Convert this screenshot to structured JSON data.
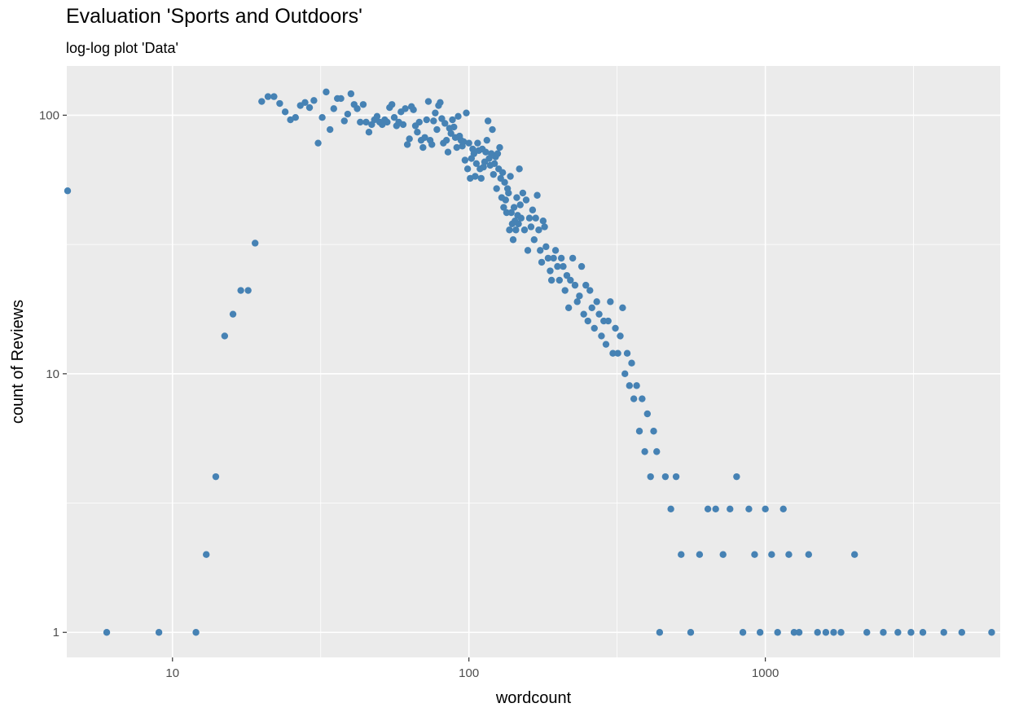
{
  "chart_data": {
    "type": "scatter",
    "title": "Evaluation 'Sports and Outdoors'",
    "subtitle": "log-log plot 'Data'",
    "xlabel": "wordcount",
    "ylabel": "count of Reviews",
    "x_scale": "log10",
    "y_scale": "log10",
    "xlim": [
      4.4,
      6200
    ],
    "ylim": [
      0.8,
      155
    ],
    "x_ticks": [
      {
        "value": 10,
        "label": "10"
      },
      {
        "value": 100,
        "label": "100"
      },
      {
        "value": 1000,
        "label": "1000"
      }
    ],
    "y_ticks": [
      {
        "value": 1,
        "label": "1"
      },
      {
        "value": 10,
        "label": "10"
      },
      {
        "value": 100,
        "label": "100"
      }
    ],
    "grid": true,
    "background": "#ebebeb",
    "point_color": "#4682b4",
    "points": [
      [
        4.4,
        51
      ],
      [
        6,
        1
      ],
      [
        9,
        1
      ],
      [
        12,
        1
      ],
      [
        13,
        2
      ],
      [
        14,
        4
      ],
      [
        15,
        14
      ],
      [
        16,
        17
      ],
      [
        17,
        21
      ],
      [
        18,
        21
      ],
      [
        19,
        32
      ],
      [
        20,
        113
      ],
      [
        21,
        118
      ],
      [
        22,
        118
      ],
      [
        23,
        111
      ],
      [
        24,
        103
      ],
      [
        25,
        96
      ],
      [
        26,
        98
      ],
      [
        27,
        109
      ],
      [
        28,
        112
      ],
      [
        29,
        107
      ],
      [
        30,
        114
      ],
      [
        31,
        78
      ],
      [
        32,
        98
      ],
      [
        33,
        123
      ],
      [
        34,
        88
      ],
      [
        35,
        106
      ],
      [
        36,
        116
      ],
      [
        37,
        116
      ],
      [
        38,
        95
      ],
      [
        39,
        101
      ],
      [
        40,
        121
      ],
      [
        41,
        110
      ],
      [
        42,
        106
      ],
      [
        43,
        94
      ],
      [
        44,
        110
      ],
      [
        45,
        94
      ],
      [
        46,
        86
      ],
      [
        47,
        92
      ],
      [
        48,
        96
      ],
      [
        49,
        99
      ],
      [
        50,
        94
      ],
      [
        51,
        92
      ],
      [
        52,
        96
      ],
      [
        53,
        94
      ],
      [
        54,
        107
      ],
      [
        55,
        110
      ],
      [
        56,
        98
      ],
      [
        57,
        91
      ],
      [
        58,
        94
      ],
      [
        59,
        103
      ],
      [
        60,
        92
      ],
      [
        61,
        106
      ],
      [
        62,
        77
      ],
      [
        63,
        81
      ],
      [
        64,
        108
      ],
      [
        65,
        105
      ],
      [
        66,
        91
      ],
      [
        67,
        86
      ],
      [
        68,
        94
      ],
      [
        69,
        80
      ],
      [
        70,
        75
      ],
      [
        71,
        82
      ],
      [
        72,
        96
      ],
      [
        73,
        113
      ],
      [
        74,
        80
      ],
      [
        75,
        77
      ],
      [
        76,
        95
      ],
      [
        77,
        102
      ],
      [
        78,
        88
      ],
      [
        79,
        109
      ],
      [
        80,
        112
      ],
      [
        81,
        97
      ],
      [
        82,
        78
      ],
      [
        83,
        93
      ],
      [
        84,
        80
      ],
      [
        85,
        72
      ],
      [
        86,
        89
      ],
      [
        87,
        85
      ],
      [
        88,
        96
      ],
      [
        89,
        90
      ],
      [
        90,
        82
      ],
      [
        91,
        75
      ],
      [
        92,
        99
      ],
      [
        93,
        83
      ],
      [
        94,
        80
      ],
      [
        95,
        76
      ],
      [
        96,
        79
      ],
      [
        97,
        67
      ],
      [
        98,
        102
      ],
      [
        99,
        62
      ],
      [
        100,
        78
      ],
      [
        101,
        57
      ],
      [
        102,
        68
      ],
      [
        103,
        74
      ],
      [
        104,
        71
      ],
      [
        105,
        58
      ],
      [
        106,
        65
      ],
      [
        107,
        78
      ],
      [
        108,
        73
      ],
      [
        109,
        62
      ],
      [
        110,
        57
      ],
      [
        111,
        74
      ],
      [
        112,
        63
      ],
      [
        113,
        66
      ],
      [
        114,
        72
      ],
      [
        115,
        80
      ],
      [
        116,
        95
      ],
      [
        117,
        68
      ],
      [
        118,
        64
      ],
      [
        119,
        71
      ],
      [
        120,
        88
      ],
      [
        121,
        59
      ],
      [
        122,
        65
      ],
      [
        123,
        69
      ],
      [
        124,
        52
      ],
      [
        125,
        71
      ],
      [
        126,
        62
      ],
      [
        127,
        75
      ],
      [
        128,
        57
      ],
      [
        129,
        48
      ],
      [
        130,
        60
      ],
      [
        131,
        44
      ],
      [
        132,
        55
      ],
      [
        133,
        47
      ],
      [
        134,
        42
      ],
      [
        135,
        52
      ],
      [
        136,
        50
      ],
      [
        137,
        36
      ],
      [
        138,
        58
      ],
      [
        139,
        42
      ],
      [
        140,
        38
      ],
      [
        141,
        33
      ],
      [
        142,
        44
      ],
      [
        143,
        39
      ],
      [
        144,
        36
      ],
      [
        145,
        48
      ],
      [
        146,
        41
      ],
      [
        147,
        38
      ],
      [
        148,
        62
      ],
      [
        149,
        45
      ],
      [
        150,
        40
      ],
      [
        152,
        50
      ],
      [
        154,
        36
      ],
      [
        156,
        47
      ],
      [
        158,
        30
      ],
      [
        160,
        40
      ],
      [
        162,
        37
      ],
      [
        164,
        43
      ],
      [
        166,
        33
      ],
      [
        168,
        40
      ],
      [
        170,
        49
      ],
      [
        172,
        36
      ],
      [
        174,
        30
      ],
      [
        176,
        27
      ],
      [
        178,
        39
      ],
      [
        180,
        37
      ],
      [
        182,
        31
      ],
      [
        185,
        28
      ],
      [
        188,
        25
      ],
      [
        190,
        23
      ],
      [
        193,
        28
      ],
      [
        196,
        30
      ],
      [
        199,
        26
      ],
      [
        202,
        23
      ],
      [
        205,
        28
      ],
      [
        208,
        26
      ],
      [
        211,
        21
      ],
      [
        214,
        24
      ],
      [
        217,
        18
      ],
      [
        220,
        23
      ],
      [
        224,
        28
      ],
      [
        228,
        22
      ],
      [
        232,
        19
      ],
      [
        236,
        20
      ],
      [
        240,
        26
      ],
      [
        244,
        17
      ],
      [
        248,
        22
      ],
      [
        252,
        16
      ],
      [
        256,
        21
      ],
      [
        260,
        18
      ],
      [
        265,
        15
      ],
      [
        270,
        19
      ],
      [
        275,
        17
      ],
      [
        280,
        14
      ],
      [
        285,
        16
      ],
      [
        290,
        13
      ],
      [
        295,
        16
      ],
      [
        300,
        19
      ],
      [
        306,
        12
      ],
      [
        312,
        15
      ],
      [
        318,
        12
      ],
      [
        324,
        14
      ],
      [
        330,
        18
      ],
      [
        336,
        10
      ],
      [
        342,
        12
      ],
      [
        348,
        9
      ],
      [
        354,
        11
      ],
      [
        360,
        8
      ],
      [
        368,
        9
      ],
      [
        376,
        6
      ],
      [
        384,
        8
      ],
      [
        392,
        5
      ],
      [
        400,
        7
      ],
      [
        410,
        4
      ],
      [
        420,
        6
      ],
      [
        430,
        5
      ],
      [
        440,
        1
      ],
      [
        460,
        4
      ],
      [
        480,
        3
      ],
      [
        500,
        4
      ],
      [
        520,
        2
      ],
      [
        560,
        1
      ],
      [
        600,
        2
      ],
      [
        640,
        3
      ],
      [
        680,
        3
      ],
      [
        720,
        2
      ],
      [
        760,
        3
      ],
      [
        800,
        4
      ],
      [
        840,
        1
      ],
      [
        880,
        3
      ],
      [
        920,
        2
      ],
      [
        960,
        1
      ],
      [
        1000,
        3
      ],
      [
        1050,
        2
      ],
      [
        1100,
        1
      ],
      [
        1150,
        3
      ],
      [
        1200,
        2
      ],
      [
        1250,
        1
      ],
      [
        1300,
        1
      ],
      [
        1400,
        2
      ],
      [
        1500,
        1
      ],
      [
        1600,
        1
      ],
      [
        1700,
        1
      ],
      [
        1800,
        1
      ],
      [
        2000,
        2
      ],
      [
        2200,
        1
      ],
      [
        2500,
        1
      ],
      [
        2800,
        1
      ],
      [
        3100,
        1
      ],
      [
        3400,
        1
      ],
      [
        4000,
        1
      ],
      [
        4600,
        1
      ],
      [
        5800,
        1
      ]
    ]
  }
}
